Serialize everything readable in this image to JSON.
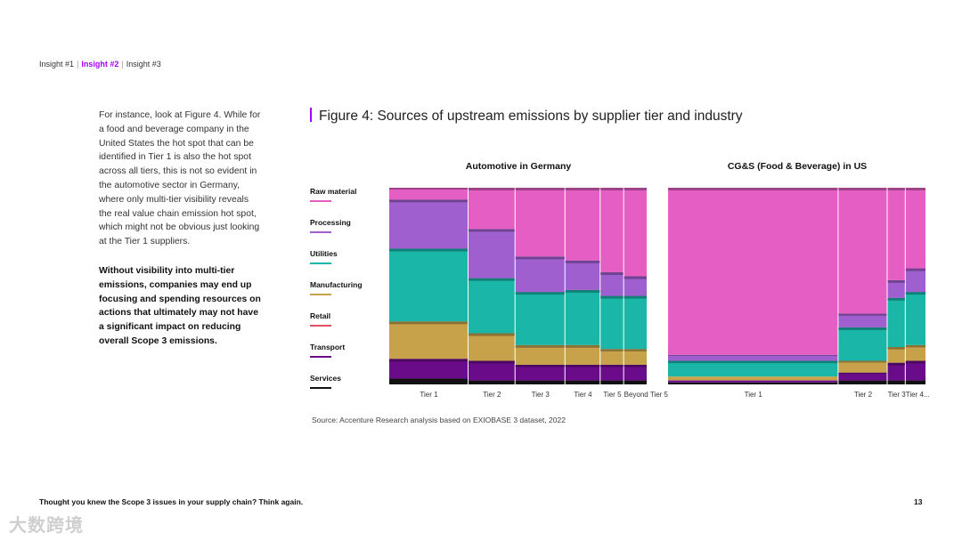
{
  "nav": {
    "items": [
      "Insight #1",
      "Insight #2",
      "Insight #3"
    ],
    "active_index": 1
  },
  "body": {
    "paragraph1": "For instance, look at Figure 4. While for a food and beverage company in the United States the hot spot that can be identified in Tier 1 is also the hot spot across all tiers, this is not so evident in the automotive sector in Germany, where only multi-tier visibility reveals the real value chain emission hot spot, which might not be obvious just looking at the Tier 1 suppliers.",
    "paragraph2": "Without visibility into multi-tier emissions, companies may end up focusing and spending resources on actions that ultimately may not have a significant impact on reducing overall Scope 3 emissions."
  },
  "figure": {
    "title": "Figure 4: Sources of upstream emissions by supplier tier and industry"
  },
  "colors": {
    "accent": "#a100ff",
    "raw_material": "#e45ec3",
    "processing": "#9f5fcf",
    "utilities": "#1ab7a8",
    "manufacturing": "#c7a24a",
    "retail": "#e04f5f",
    "transport": "#6a0c8a",
    "services": "#111111"
  },
  "legend": [
    {
      "label": "Raw material",
      "color": "#e45ec3"
    },
    {
      "label": "Processing",
      "color": "#9f5fcf"
    },
    {
      "label": "Utilities",
      "color": "#1ab7a8"
    },
    {
      "label": "Manufacturing",
      "color": "#c7a24a"
    },
    {
      "label": "Retail",
      "color": "#e04f5f"
    },
    {
      "label": "Transport",
      "color": "#6a0c8a"
    },
    {
      "label": "Services",
      "color": "#111111"
    }
  ],
  "chart_data": [
    {
      "type": "bar",
      "subtype": "mekko",
      "title": "Automotive in Germany",
      "categories": [
        "Tier 1",
        "Tier 2",
        "Tier 3",
        "Tier 4",
        "Tier 5",
        "Beyond Tier 5"
      ],
      "widths": [
        27,
        16,
        17,
        12,
        8,
        8
      ],
      "series": [
        {
          "name": "Services",
          "values": [
            3,
            2,
            2,
            2,
            2,
            2
          ]
        },
        {
          "name": "Transport",
          "values": [
            10,
            10,
            8,
            8,
            8,
            8
          ]
        },
        {
          "name": "Manufacturing",
          "values": [
            19,
            14,
            10,
            10,
            8,
            8
          ]
        },
        {
          "name": "Utilities",
          "values": [
            37,
            28,
            27,
            28,
            27,
            27
          ]
        },
        {
          "name": "Processing",
          "values": [
            25,
            25,
            18,
            15,
            12,
            10
          ]
        },
        {
          "name": "Raw material",
          "values": [
            6,
            21,
            35,
            37,
            43,
            45
          ]
        }
      ]
    },
    {
      "type": "bar",
      "subtype": "mekko",
      "title": "CG&S (Food & Beverage) in US",
      "categories": [
        "Tier 1",
        "Tier 2",
        "Tier 3",
        "Tier 4..."
      ],
      "widths": [
        66,
        19,
        7,
        8
      ],
      "series": [
        {
          "name": "Services",
          "values": [
            1,
            2,
            2,
            2
          ]
        },
        {
          "name": "Transport",
          "values": [
            1,
            4,
            9,
            10
          ]
        },
        {
          "name": "Manufacturing",
          "values": [
            2,
            6,
            8,
            8
          ]
        },
        {
          "name": "Utilities",
          "values": [
            8,
            17,
            25,
            27
          ]
        },
        {
          "name": "Processing",
          "values": [
            3,
            7,
            9,
            12
          ]
        },
        {
          "name": "Raw material",
          "values": [
            85,
            64,
            47,
            41
          ]
        }
      ]
    }
  ],
  "source": "Source: Accenture Research analysis based on EXIOBASE 3 dataset, 2022",
  "footer": {
    "text": "Thought you knew the Scope 3 issues in your supply chain? Think again.",
    "page_number": "13"
  },
  "watermark": "大数跨境"
}
